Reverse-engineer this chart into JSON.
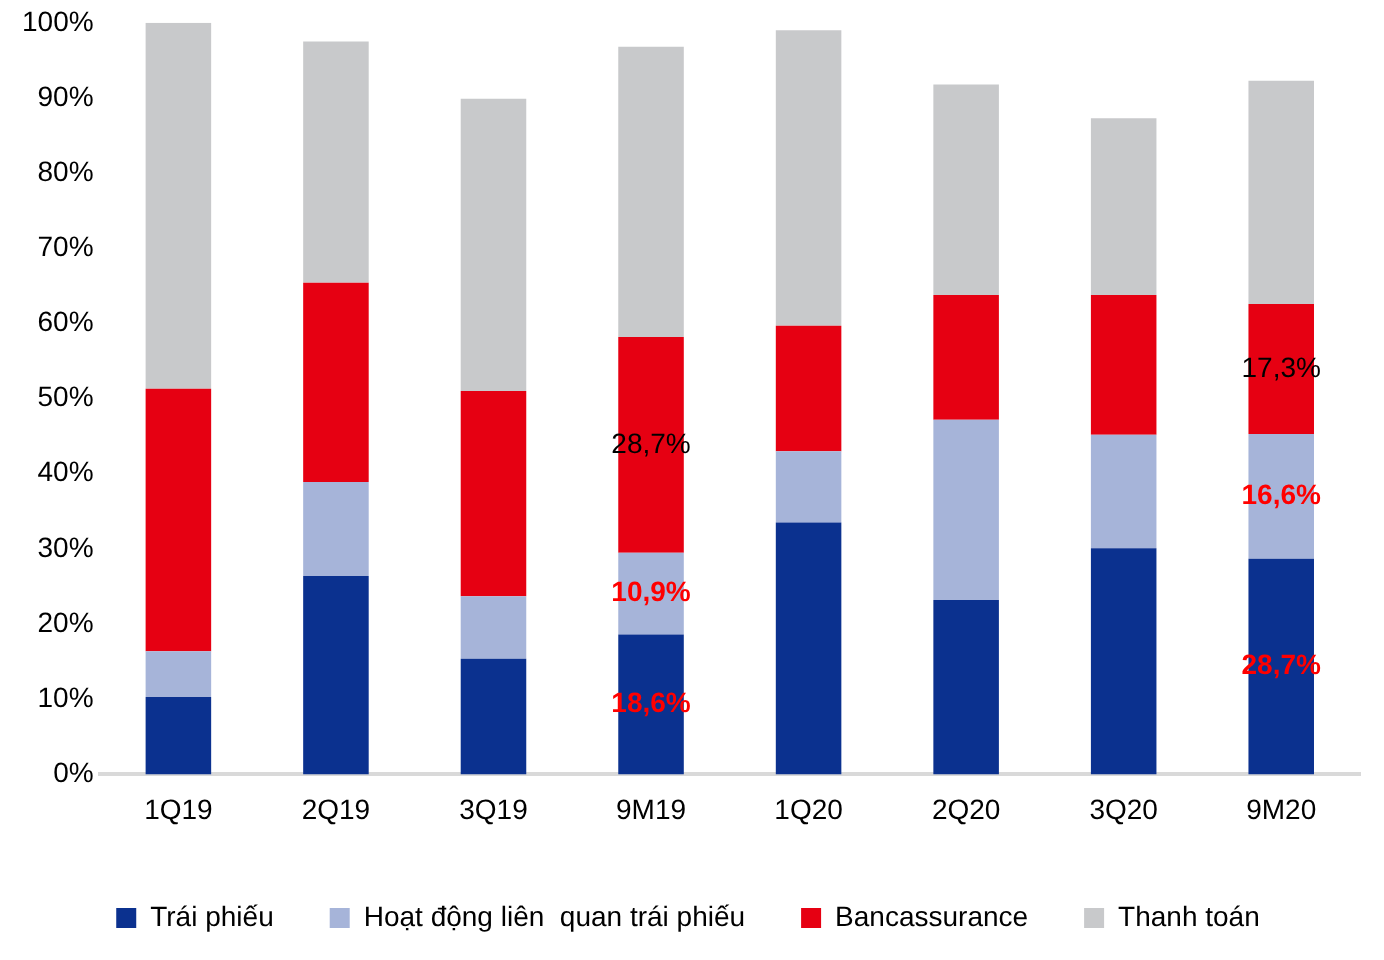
{
  "chart_data": {
    "type": "bar",
    "stacked": true,
    "categories": [
      "1Q19",
      "2Q19",
      "3Q19",
      "9M19",
      "1Q20",
      "2Q20",
      "3Q20",
      "9M20"
    ],
    "series": [
      {
        "name": "Trái phiếu",
        "color": "#0b318f",
        "values": [
          10.3,
          26.4,
          15.4,
          18.6,
          33.5,
          23.2,
          30.1,
          28.7
        ],
        "value_labels": [
          null,
          null,
          null,
          "18,6%",
          null,
          null,
          null,
          "28,7%"
        ]
      },
      {
        "name": "Hoạt động liên  quan trái phiếu",
        "color": "#a6b4d9",
        "values": [
          6.1,
          12.5,
          8.3,
          10.9,
          9.5,
          24.0,
          15.1,
          16.6
        ],
        "value_labels": [
          null,
          null,
          null,
          "10,9%",
          null,
          null,
          null,
          "16,6%"
        ]
      },
      {
        "name": "Bancassurance",
        "color": "#e60012",
        "values": [
          34.9,
          26.5,
          27.3,
          28.7,
          16.7,
          16.6,
          18.6,
          17.3
        ],
        "value_labels": [
          null,
          null,
          null,
          "28,7%",
          null,
          null,
          null,
          "17,3%"
        ]
      },
      {
        "name": "Thanh toán",
        "color": "#c8c9cb",
        "values": [
          48.7,
          32.1,
          38.9,
          38.6,
          39.3,
          28.0,
          23.5,
          29.7
        ]
      }
    ],
    "ylim": [
      0,
      100
    ],
    "yticks": [
      {
        "value": 0,
        "label": "0%"
      },
      {
        "value": 10,
        "label": "10%"
      },
      {
        "value": 20,
        "label": "20%"
      },
      {
        "value": 30,
        "label": "30%"
      },
      {
        "value": 40,
        "label": "40%"
      },
      {
        "value": 50,
        "label": "50%"
      },
      {
        "value": 60,
        "label": "60%"
      },
      {
        "value": 70,
        "label": "70%"
      },
      {
        "value": 80,
        "label": "80%"
      },
      {
        "value": 90,
        "label": "90%"
      },
      {
        "value": 100,
        "label": "100%"
      }
    ],
    "grid": false,
    "legend": "bottom"
  }
}
